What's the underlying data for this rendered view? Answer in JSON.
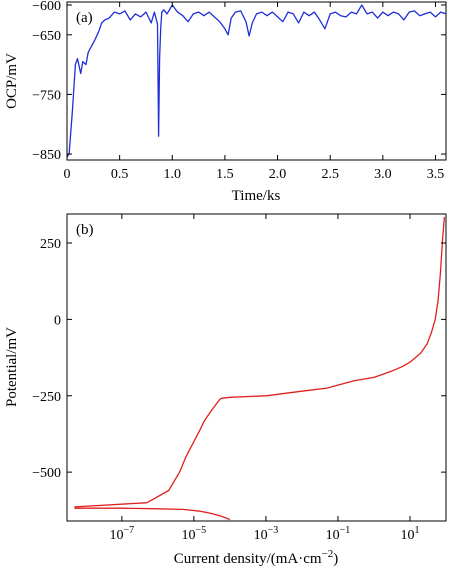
{
  "chart_data": [
    {
      "type": "line",
      "panel_label": "(a)",
      "xlabel": "Time/ks",
      "ylabel": "OCP/mV",
      "xlim": [
        0,
        3.6
      ],
      "ylim": [
        -860,
        -595
      ],
      "x_ticks": [
        "0",
        "0.5",
        "1.0",
        "1.5",
        "2.0",
        "2.5",
        "3.0",
        "3.5"
      ],
      "x_tick_values": [
        0,
        0.5,
        1.0,
        1.5,
        2.0,
        2.5,
        3.0,
        3.5
      ],
      "y_ticks": [
        "−600",
        "−650",
        "−750",
        "−850"
      ],
      "y_tick_values": [
        -600,
        -650,
        -750,
        -850
      ],
      "grid": false,
      "series": [
        {
          "color": "#1f2fd6",
          "x": [
            0.0,
            0.02,
            0.05,
            0.08,
            0.1,
            0.13,
            0.15,
            0.18,
            0.2,
            0.23,
            0.26,
            0.3,
            0.33,
            0.36,
            0.4,
            0.45,
            0.5,
            0.55,
            0.6,
            0.65,
            0.7,
            0.75,
            0.8,
            0.83,
            0.86,
            0.87,
            0.88,
            0.89,
            0.9,
            0.92,
            0.95,
            1.0,
            1.05,
            1.1,
            1.15,
            1.2,
            1.25,
            1.3,
            1.35,
            1.4,
            1.45,
            1.5,
            1.53,
            1.56,
            1.6,
            1.65,
            1.7,
            1.73,
            1.76,
            1.8,
            1.85,
            1.9,
            1.95,
            2.0,
            2.05,
            2.1,
            2.15,
            2.2,
            2.25,
            2.3,
            2.35,
            2.4,
            2.45,
            2.5,
            2.55,
            2.6,
            2.65,
            2.7,
            2.75,
            2.8,
            2.85,
            2.9,
            2.95,
            3.0,
            3.05,
            3.1,
            3.15,
            3.2,
            3.25,
            3.3,
            3.35,
            3.4,
            3.45,
            3.5,
            3.55,
            3.6
          ],
          "values": [
            -855,
            -850,
            -780,
            -700,
            -690,
            -715,
            -695,
            -700,
            -680,
            -670,
            -660,
            -645,
            -630,
            -625,
            -622,
            -612,
            -615,
            -610,
            -625,
            -615,
            -620,
            -612,
            -630,
            -612,
            -632,
            -820,
            -690,
            -640,
            -612,
            -608,
            -615,
            -600,
            -612,
            -618,
            -628,
            -615,
            -612,
            -618,
            -612,
            -620,
            -628,
            -640,
            -650,
            -622,
            -612,
            -610,
            -628,
            -652,
            -630,
            -615,
            -612,
            -618,
            -612,
            -620,
            -628,
            -612,
            -615,
            -630,
            -612,
            -618,
            -612,
            -625,
            -640,
            -615,
            -612,
            -618,
            -620,
            -612,
            -615,
            -600,
            -615,
            -612,
            -622,
            -612,
            -618,
            -612,
            -615,
            -625,
            -612,
            -610,
            -618,
            -615,
            -612,
            -620,
            -612,
            -615
          ]
        }
      ]
    },
    {
      "type": "line",
      "panel_label": "(b)",
      "xlabel": "Current density/(mA·cm−2)",
      "ylabel": "Potential/mV",
      "x_scale": "log",
      "xlim": [
        3e-09,
        100
      ],
      "ylim": [
        -660,
        345
      ],
      "x_ticks": [
        "10−7",
        "10−5",
        "10−3",
        "10−1",
        "101"
      ],
      "x_tick_values": [
        1e-07,
        1e-05,
        0.001,
        0.1,
        10
      ],
      "y_ticks": [
        "250",
        "0",
        "−250",
        "−500"
      ],
      "y_tick_values": [
        250,
        0,
        -250,
        -500
      ],
      "grid": false,
      "series": [
        {
          "color": "#e0201c",
          "x": [
            0.0001,
            6e-05,
            3e-05,
            1.5e-05,
            5e-06,
            1e-06,
            1e-07,
            5e-09,
            5e-09,
            5e-07,
            2e-06,
            4e-06,
            6e-06,
            1e-05,
            1.5e-05,
            2e-05,
            3e-05,
            4e-05,
            5e-05,
            5.5e-05,
            6e-05,
            0.0001,
            0.001,
            0.01,
            0.05,
            0.1,
            0.3,
            1,
            3,
            6,
            10,
            20,
            30,
            40,
            50,
            60,
            70,
            80,
            90
          ],
          "values": [
            -655,
            -645,
            -635,
            -628,
            -622,
            -620,
            -618,
            -618,
            -614,
            -600,
            -560,
            -500,
            -450,
            -400,
            -360,
            -330,
            -300,
            -280,
            -265,
            -260,
            -258,
            -255,
            -250,
            -235,
            -225,
            -215,
            -200,
            -190,
            -170,
            -155,
            -140,
            -110,
            -80,
            -40,
            0,
            60,
            150,
            260,
            335
          ]
        }
      ]
    }
  ]
}
